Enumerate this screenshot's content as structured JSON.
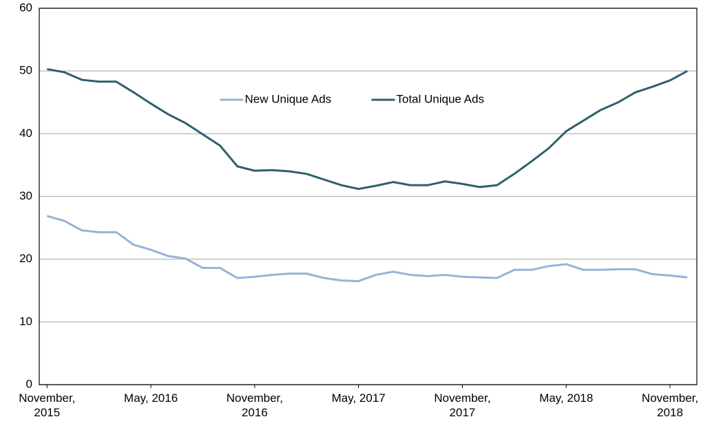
{
  "chart_data": {
    "type": "line",
    "categories": [
      "November, 2015",
      null,
      null,
      null,
      null,
      null,
      "May, 2016",
      null,
      null,
      null,
      null,
      null,
      "November, 2016",
      null,
      null,
      null,
      null,
      null,
      "May, 2017",
      null,
      null,
      null,
      null,
      null,
      "November, 2017",
      null,
      null,
      null,
      null,
      null,
      "May, 2018",
      null,
      null,
      null,
      null,
      null,
      "November, 2018",
      null
    ],
    "series": [
      {
        "name": "New Unique Ads",
        "color": "#95b3d7",
        "values": [
          26.9,
          26.1,
          24.6,
          24.3,
          24.3,
          22.3,
          21.5,
          20.5,
          20.1,
          18.6,
          18.6,
          17.0,
          17.2,
          17.5,
          17.7,
          17.7,
          17.0,
          16.6,
          16.5,
          17.5,
          18.0,
          17.5,
          17.3,
          17.5,
          17.2,
          17.1,
          17.0,
          18.3,
          18.3,
          18.9,
          19.2,
          18.3,
          18.3,
          18.4,
          18.4,
          17.6,
          17.4,
          17.1
        ]
      },
      {
        "name": "Total Unique Ads",
        "color": "#2f5f6b",
        "values": [
          50.3,
          49.8,
          48.6,
          48.3,
          48.3,
          46.6,
          44.8,
          43.1,
          41.7,
          39.9,
          38.1,
          34.8,
          34.1,
          34.2,
          34.0,
          33.6,
          32.7,
          31.8,
          31.2,
          31.7,
          32.3,
          31.8,
          31.8,
          32.4,
          32.0,
          31.5,
          31.8,
          33.6,
          35.6,
          37.7,
          40.4,
          42.1,
          43.8,
          45.0,
          46.6,
          47.5,
          48.5,
          50.0
        ]
      }
    ],
    "ylim": [
      0,
      60
    ],
    "yticks": [
      0,
      10,
      20,
      30,
      40,
      50,
      60
    ],
    "grid": true,
    "legend_loc": "upper center"
  }
}
